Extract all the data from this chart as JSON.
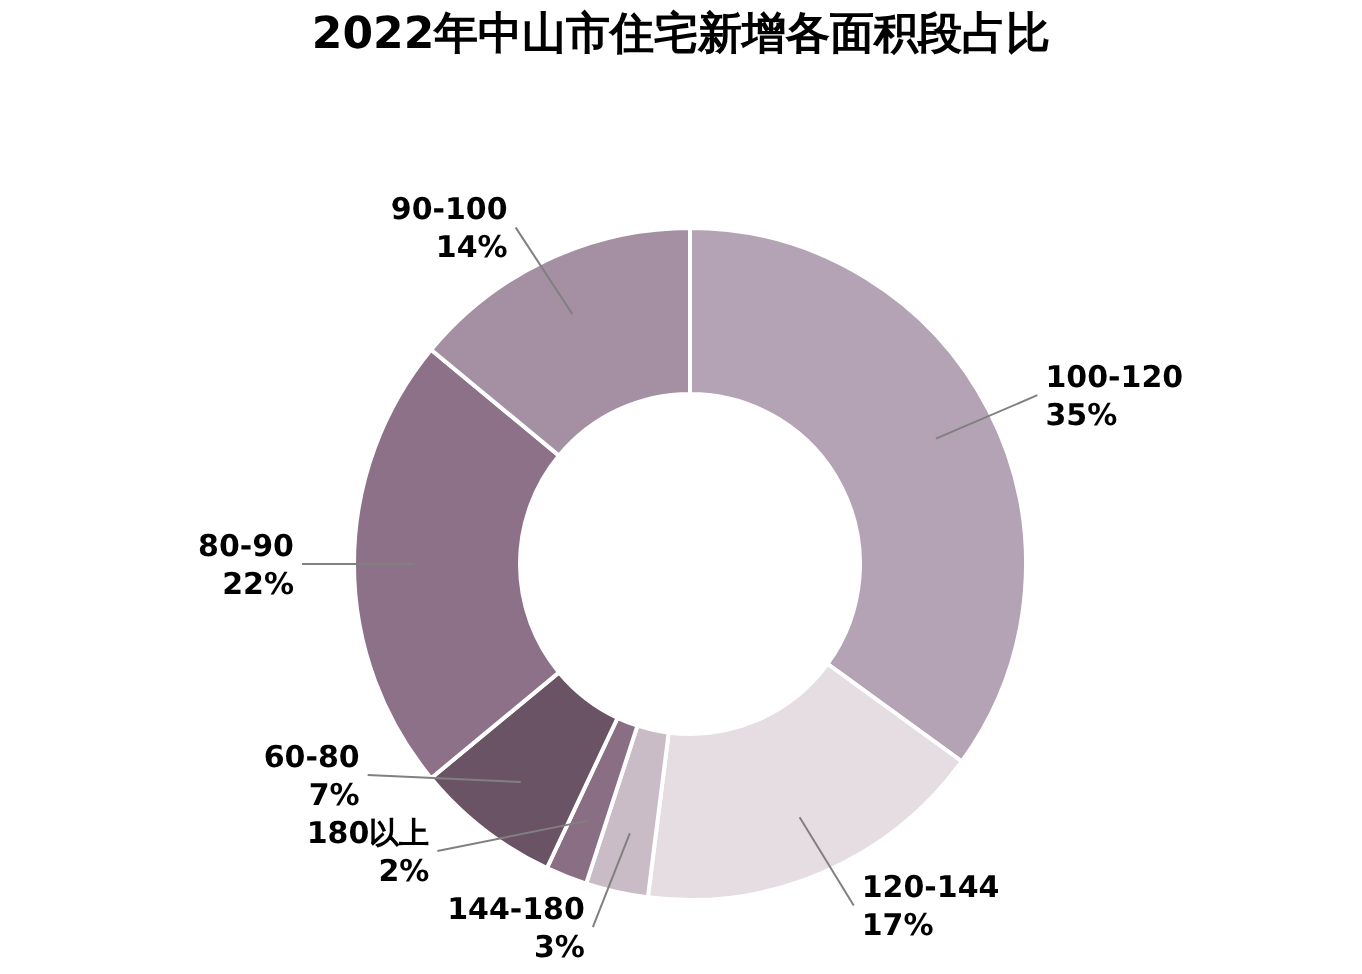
{
  "chart_data": {
    "type": "donut",
    "title": "2022年中山市住宅新增各面积段占比",
    "categories": [
      "100-120",
      "120-144",
      "144-180",
      "180以上",
      "60-80",
      "80-90",
      "90-100"
    ],
    "values": [
      35,
      17,
      3,
      2,
      7,
      22,
      14
    ],
    "value_labels": [
      "35%",
      "17%",
      "3%",
      "2%",
      "7%",
      "22%",
      "14%"
    ],
    "colors": [
      "#b3a3b4",
      "#e6dde3",
      "#c9bcc6",
      "#8a6e84",
      "#6b5366",
      "#8d7189",
      "#a58fa2"
    ],
    "legend": false
  }
}
